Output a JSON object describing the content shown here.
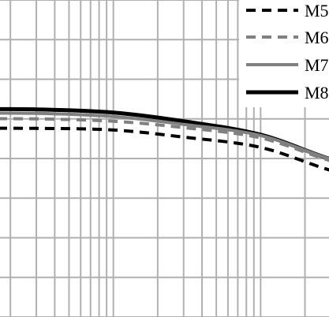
{
  "chart_data": {
    "type": "line",
    "title": "",
    "xlabel": "",
    "ylabel": "",
    "x_scale": "log",
    "y_scale": "linear",
    "grid": true,
    "legend_position": "top-right",
    "colors": {
      "M5": "#000000",
      "M6": "#808080",
      "M7": "#808080",
      "M8": "#000000",
      "grid": "#b0b0b0"
    },
    "series": [
      {
        "name": "M5",
        "style": "dashed",
        "points": [
          [
            0.1,
            2.38
          ],
          [
            0.3,
            2.38
          ],
          [
            1,
            2.36
          ],
          [
            3,
            2.27
          ],
          [
            10,
            2.14
          ],
          [
            30,
            1.85
          ],
          [
            100,
            1.61
          ]
        ]
      },
      {
        "name": "M6",
        "style": "dashed",
        "points": [
          [
            0.1,
            2.5
          ],
          [
            0.3,
            2.5
          ],
          [
            1,
            2.47
          ],
          [
            3,
            2.39
          ],
          [
            10,
            2.26
          ],
          [
            30,
            1.97
          ],
          [
            100,
            1.72
          ]
        ]
      },
      {
        "name": "M7",
        "style": "solid",
        "points": [
          [
            0.1,
            2.57
          ],
          [
            0.3,
            2.57
          ],
          [
            1,
            2.53
          ],
          [
            3,
            2.43
          ],
          [
            10,
            2.29
          ],
          [
            30,
            1.99
          ],
          [
            100,
            1.74
          ]
        ]
      },
      {
        "name": "M8",
        "style": "solid",
        "points": [
          [
            0.1,
            2.62
          ],
          [
            0.3,
            2.62
          ],
          [
            1,
            2.58
          ],
          [
            3,
            2.47
          ],
          [
            10,
            2.3
          ],
          [
            30,
            1.99
          ],
          [
            100,
            1.72
          ]
        ]
      }
    ],
    "xlim": [
      0.1,
      100
    ],
    "ylim": [
      4,
      0
    ]
  }
}
